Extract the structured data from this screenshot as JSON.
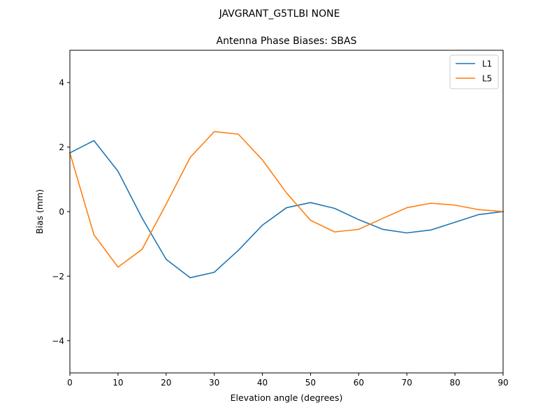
{
  "figure": {
    "suptitle": "JAVGRANT_G5TLBI NONE"
  },
  "chart_data": {
    "type": "line",
    "title": "Antenna Phase Biases: SBAS",
    "xlabel": "Elevation angle (degrees)",
    "ylabel": "Bias (mm)",
    "xlim": [
      0,
      90
    ],
    "ylim": [
      -5,
      5
    ],
    "x_ticks": [
      0,
      10,
      20,
      30,
      40,
      50,
      60,
      70,
      80,
      90
    ],
    "y_ticks": [
      -4,
      -2,
      0,
      2,
      4
    ],
    "x_tick_labels": [
      "0",
      "10",
      "20",
      "30",
      "40",
      "50",
      "60",
      "70",
      "80",
      "90"
    ],
    "y_tick_labels": [
      "−4",
      "−2",
      "0",
      "2",
      "4"
    ],
    "grid": false,
    "legend_position": "top-right",
    "x": [
      0,
      5,
      10,
      15,
      20,
      25,
      30,
      35,
      40,
      45,
      50,
      55,
      60,
      65,
      70,
      75,
      80,
      85,
      90
    ],
    "series": [
      {
        "name": "L1",
        "color": "#1f77b4",
        "values": [
          1.82,
          2.2,
          1.25,
          -0.2,
          -1.48,
          -2.05,
          -1.88,
          -1.2,
          -0.42,
          0.12,
          0.28,
          0.1,
          -0.25,
          -0.55,
          -0.66,
          -0.57,
          -0.33,
          -0.09,
          0.0
        ]
      },
      {
        "name": "L5",
        "color": "#ff7f0e",
        "values": [
          1.82,
          -0.72,
          -1.72,
          -1.17,
          0.23,
          1.68,
          2.48,
          2.4,
          1.6,
          0.58,
          -0.27,
          -0.63,
          -0.55,
          -0.21,
          0.12,
          0.26,
          0.2,
          0.06,
          0.0
        ]
      }
    ]
  }
}
